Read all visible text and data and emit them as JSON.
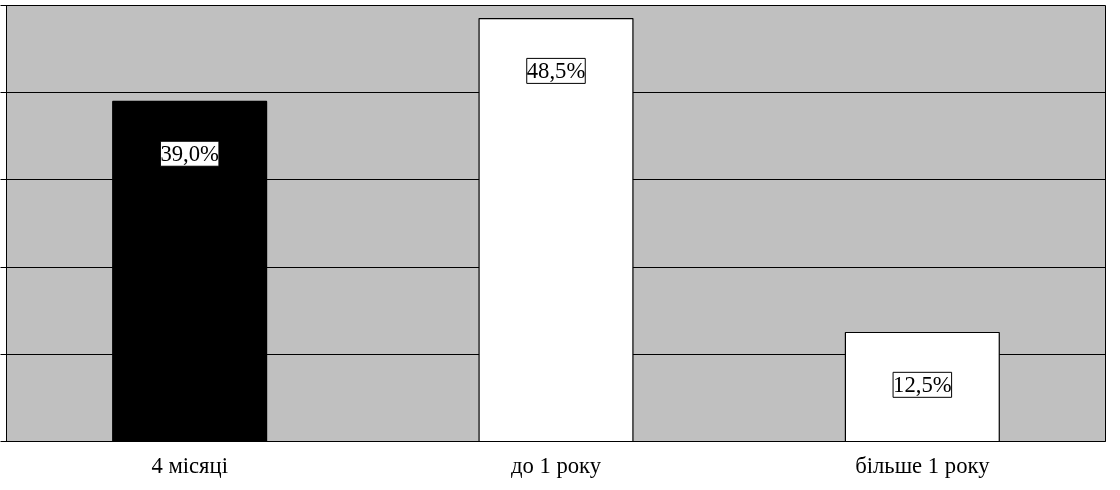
{
  "chart_data": {
    "type": "bar",
    "categories": [
      "4 місяці",
      "до 1 року",
      "більше 1 року"
    ],
    "values": [
      39.0,
      48.5,
      12.5
    ],
    "colors": [
      "#000000",
      "#ffffff",
      "#ffffff"
    ],
    "value_labels": [
      "39,0%",
      "48,5%",
      "12,5%"
    ],
    "ylim": [
      0,
      50
    ],
    "yticks": [
      {
        "value": 0,
        "label": null
      },
      {
        "value": 10,
        "label": null
      },
      {
        "value": 20,
        "label": null
      },
      {
        "value": 30,
        "label": null
      },
      {
        "value": 40,
        "label": null
      },
      {
        "value": 50,
        "label": null
      }
    ],
    "tick_labels": "x",
    "grid": "y"
  }
}
